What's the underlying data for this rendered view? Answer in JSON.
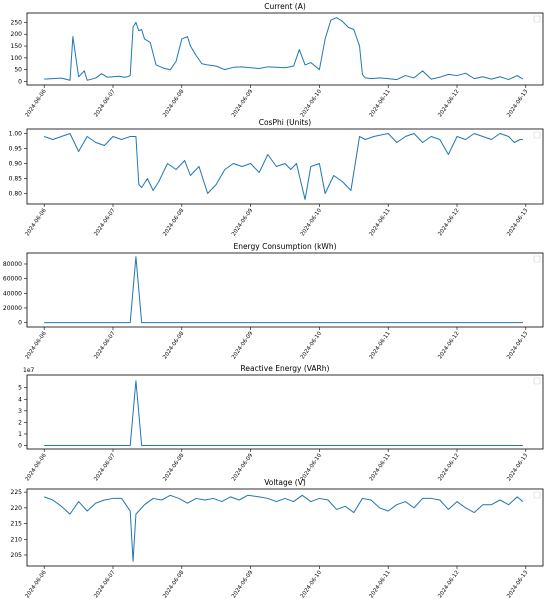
{
  "figure": {
    "charts": [
      {
        "title": "Current (A)",
        "yticks": [
          0,
          50,
          100,
          150,
          200,
          250
        ],
        "ylim": [
          -15,
          290
        ],
        "y_offset_label": ""
      },
      {
        "title": "CosPhi (Units)",
        "yticks": [
          0.8,
          0.85,
          0.9,
          0.95,
          1.0
        ],
        "ytick_labels": [
          "0.80",
          "0.85",
          "0.90",
          "0.95",
          "1.00"
        ],
        "ylim": [
          0.765,
          1.015
        ],
        "y_offset_label": ""
      },
      {
        "title": "Energy Consumption (kWh)",
        "yticks": [
          0,
          20000,
          40000,
          60000,
          80000
        ],
        "ylim": [
          -6000,
          95000
        ],
        "y_offset_label": ""
      },
      {
        "title": "Reactive Energy (VARh)",
        "yticks": [
          0,
          1,
          2,
          3,
          4,
          5
        ],
        "ylim": [
          -0.3,
          6.1
        ],
        "y_offset_label": "1e7"
      },
      {
        "title": "Voltage (V)",
        "yticks": [
          205,
          210,
          215,
          220,
          225
        ],
        "ylim": [
          201.5,
          226
        ],
        "y_offset_label": ""
      }
    ]
  },
  "chart_data": [
    {
      "type": "line",
      "title": "Current (A)",
      "xlabel": "",
      "ylabel": "",
      "xlim": [
        "2024-06-05 18:00",
        "2024-06-13 06:00"
      ],
      "ylim": [
        -15,
        290
      ],
      "x_ticks": [
        "2024-06-06",
        "2024-06-07",
        "2024-06-08",
        "2024-06-09",
        "2024-06-10",
        "2024-06-11",
        "2024-06-12",
        "2024-06-13"
      ],
      "color": "#1f77b4",
      "series": [
        {
          "x": [
            "2024-06-06 00:00",
            "2024-06-06 03:00",
            "2024-06-06 06:00",
            "2024-06-06 09:00",
            "2024-06-06 10:00",
            "2024-06-06 12:00",
            "2024-06-06 14:00",
            "2024-06-06 15:00",
            "2024-06-06 16:00",
            "2024-06-06 18:00",
            "2024-06-06 20:00",
            "2024-06-06 22:00",
            "2024-06-07 00:00",
            "2024-06-07 02:00",
            "2024-06-07 04:00",
            "2024-06-07 05:00",
            "2024-06-07 06:00",
            "2024-06-07 07:00",
            "2024-06-07 08:00",
            "2024-06-07 09:00",
            "2024-06-07 10:00",
            "2024-06-07 11:00",
            "2024-06-07 13:00",
            "2024-06-07 15:00",
            "2024-06-07 17:00",
            "2024-06-07 18:00",
            "2024-06-07 20:00",
            "2024-06-07 22:00",
            "2024-06-08 00:00",
            "2024-06-08 02:00",
            "2024-06-08 03:00",
            "2024-06-08 05:00",
            "2024-06-08 07:00",
            "2024-06-08 09:00",
            "2024-06-08 12:00",
            "2024-06-08 15:00",
            "2024-06-08 18:00",
            "2024-06-08 21:00",
            "2024-06-09 00:00",
            "2024-06-09 03:00",
            "2024-06-09 06:00",
            "2024-06-09 09:00",
            "2024-06-09 12:00",
            "2024-06-09 15:00",
            "2024-06-09 17:00",
            "2024-06-09 19:00",
            "2024-06-09 21:00",
            "2024-06-10 00:00",
            "2024-06-10 02:00",
            "2024-06-10 04:00",
            "2024-06-10 06:00",
            "2024-06-10 08:00",
            "2024-06-10 10:00",
            "2024-06-10 12:00",
            "2024-06-10 14:00",
            "2024-06-10 15:00",
            "2024-06-10 16:00",
            "2024-06-10 18:00",
            "2024-06-10 21:00",
            "2024-06-11 00:00",
            "2024-06-11 03:00",
            "2024-06-11 06:00",
            "2024-06-11 09:00",
            "2024-06-11 12:00",
            "2024-06-11 15:00",
            "2024-06-11 18:00",
            "2024-06-11 21:00",
            "2024-06-12 00:00",
            "2024-06-12 03:00",
            "2024-06-12 06:00",
            "2024-06-12 09:00",
            "2024-06-12 12:00",
            "2024-06-12 15:00",
            "2024-06-12 18:00",
            "2024-06-12 21:00",
            "2024-06-12 23:00"
          ],
          "y": [
            10,
            12,
            14,
            5,
            190,
            20,
            45,
            5,
            8,
            15,
            33,
            18,
            20,
            22,
            18,
            20,
            25,
            230,
            250,
            215,
            220,
            180,
            165,
            70,
            60,
            55,
            50,
            85,
            180,
            190,
            150,
            110,
            75,
            70,
            65,
            50,
            60,
            62,
            58,
            55,
            62,
            60,
            58,
            65,
            135,
            70,
            80,
            50,
            180,
            260,
            270,
            255,
            230,
            220,
            150,
            30,
            15,
            12,
            15,
            12,
            8,
            25,
            15,
            45,
            10,
            18,
            30,
            25,
            35,
            12,
            20,
            10,
            20,
            8,
            25,
            10
          ]
        }
      ]
    },
    {
      "type": "line",
      "title": "CosPhi (Units)",
      "xlabel": "",
      "ylabel": "",
      "xlim": [
        "2024-06-05 18:00",
        "2024-06-13 06:00"
      ],
      "ylim": [
        0.765,
        1.015
      ],
      "x_ticks": [
        "2024-06-06",
        "2024-06-07",
        "2024-06-08",
        "2024-06-09",
        "2024-06-10",
        "2024-06-11",
        "2024-06-12",
        "2024-06-13"
      ],
      "color": "#1f77b4",
      "series": [
        {
          "x": [
            "2024-06-06 00:00",
            "2024-06-06 03:00",
            "2024-06-06 06:00",
            "2024-06-06 09:00",
            "2024-06-06 12:00",
            "2024-06-06 15:00",
            "2024-06-06 18:00",
            "2024-06-06 21:00",
            "2024-06-07 00:00",
            "2024-06-07 03:00",
            "2024-06-07 06:00",
            "2024-06-07 08:00",
            "2024-06-07 09:00",
            "2024-06-07 10:00",
            "2024-06-07 12:00",
            "2024-06-07 14:00",
            "2024-06-07 16:00",
            "2024-06-07 19:00",
            "2024-06-07 22:00",
            "2024-06-08 01:00",
            "2024-06-08 03:00",
            "2024-06-08 06:00",
            "2024-06-08 09:00",
            "2024-06-08 12:00",
            "2024-06-08 15:00",
            "2024-06-08 18:00",
            "2024-06-08 21:00",
            "2024-06-09 00:00",
            "2024-06-09 03:00",
            "2024-06-09 06:00",
            "2024-06-09 09:00",
            "2024-06-09 12:00",
            "2024-06-09 14:00",
            "2024-06-09 16:00",
            "2024-06-09 19:00",
            "2024-06-09 21:00",
            "2024-06-10 00:00",
            "2024-06-10 02:00",
            "2024-06-10 05:00",
            "2024-06-10 08:00",
            "2024-06-10 11:00",
            "2024-06-10 14:00",
            "2024-06-10 16:00",
            "2024-06-10 19:00",
            "2024-06-11 00:00",
            "2024-06-11 03:00",
            "2024-06-11 06:00",
            "2024-06-11 09:00",
            "2024-06-11 12:00",
            "2024-06-11 15:00",
            "2024-06-11 18:00",
            "2024-06-11 21:00",
            "2024-06-12 00:00",
            "2024-06-12 03:00",
            "2024-06-12 06:00",
            "2024-06-12 09:00",
            "2024-06-12 12:00",
            "2024-06-12 15:00",
            "2024-06-12 18:00",
            "2024-06-12 20:00",
            "2024-06-12 22:00",
            "2024-06-12 23:00"
          ],
          "y": [
            0.99,
            0.98,
            0.99,
            1.0,
            0.94,
            0.99,
            0.97,
            0.96,
            0.99,
            0.98,
            0.99,
            0.99,
            0.83,
            0.82,
            0.85,
            0.81,
            0.84,
            0.9,
            0.88,
            0.91,
            0.86,
            0.89,
            0.8,
            0.83,
            0.88,
            0.9,
            0.89,
            0.9,
            0.87,
            0.93,
            0.89,
            0.9,
            0.88,
            0.9,
            0.78,
            0.89,
            0.9,
            0.8,
            0.86,
            0.84,
            0.81,
            0.99,
            0.98,
            0.99,
            1.0,
            0.97,
            0.99,
            1.0,
            0.97,
            0.99,
            0.98,
            0.93,
            0.99,
            0.98,
            1.0,
            0.99,
            0.98,
            1.0,
            0.99,
            0.97,
            0.98,
            0.98
          ]
        }
      ]
    },
    {
      "type": "line",
      "title": "Energy Consumption (kWh)",
      "xlabel": "",
      "ylabel": "",
      "xlim": [
        "2024-06-05 18:00",
        "2024-06-13 06:00"
      ],
      "ylim": [
        -6000,
        95000
      ],
      "x_ticks": [
        "2024-06-06",
        "2024-06-07",
        "2024-06-08",
        "2024-06-09",
        "2024-06-10",
        "2024-06-11",
        "2024-06-12",
        "2024-06-13"
      ],
      "color": "#1f77b4",
      "series": [
        {
          "x": [
            "2024-06-06 00:00",
            "2024-06-07 06:00",
            "2024-06-07 08:00",
            "2024-06-07 10:00",
            "2024-06-12 23:00"
          ],
          "y": [
            0,
            0,
            90000,
            0,
            0
          ]
        }
      ]
    },
    {
      "type": "line",
      "title": "Reactive Energy (VARh)",
      "xlabel": "",
      "ylabel": "",
      "y_offset_label": "1e7",
      "xlim": [
        "2024-06-05 18:00",
        "2024-06-13 06:00"
      ],
      "ylim": [
        -0.3,
        6.1
      ],
      "x_ticks": [
        "2024-06-06",
        "2024-06-07",
        "2024-06-08",
        "2024-06-09",
        "2024-06-10",
        "2024-06-11",
        "2024-06-12",
        "2024-06-13"
      ],
      "color": "#1f77b4",
      "series": [
        {
          "x": [
            "2024-06-06 00:00",
            "2024-06-07 06:00",
            "2024-06-07 08:00",
            "2024-06-07 10:00",
            "2024-06-12 23:00"
          ],
          "y": [
            0,
            0,
            5.6,
            0,
            0
          ]
        }
      ]
    },
    {
      "type": "line",
      "title": "Voltage (V)",
      "xlabel": "",
      "ylabel": "",
      "xlim": [
        "2024-06-05 18:00",
        "2024-06-13 06:00"
      ],
      "ylim": [
        201.5,
        226
      ],
      "x_ticks": [
        "2024-06-06",
        "2024-06-07",
        "2024-06-08",
        "2024-06-09",
        "2024-06-10",
        "2024-06-11",
        "2024-06-12",
        "2024-06-13"
      ],
      "color": "#1f77b4",
      "series": [
        {
          "x": [
            "2024-06-06 00:00",
            "2024-06-06 03:00",
            "2024-06-06 06:00",
            "2024-06-06 09:00",
            "2024-06-06 12:00",
            "2024-06-06 15:00",
            "2024-06-06 18:00",
            "2024-06-06 21:00",
            "2024-06-07 00:00",
            "2024-06-07 03:00",
            "2024-06-07 06:00",
            "2024-06-07 07:00",
            "2024-06-07 08:00",
            "2024-06-07 09:00",
            "2024-06-07 11:00",
            "2024-06-07 14:00",
            "2024-06-07 17:00",
            "2024-06-07 20:00",
            "2024-06-07 23:00",
            "2024-06-08 02:00",
            "2024-06-08 05:00",
            "2024-06-08 08:00",
            "2024-06-08 11:00",
            "2024-06-08 14:00",
            "2024-06-08 17:00",
            "2024-06-08 20:00",
            "2024-06-08 23:00",
            "2024-06-09 03:00",
            "2024-06-09 06:00",
            "2024-06-09 09:00",
            "2024-06-09 12:00",
            "2024-06-09 15:00",
            "2024-06-09 18:00",
            "2024-06-09 21:00",
            "2024-06-10 00:00",
            "2024-06-10 03:00",
            "2024-06-10 06:00",
            "2024-06-10 09:00",
            "2024-06-10 12:00",
            "2024-06-10 15:00",
            "2024-06-10 18:00",
            "2024-06-10 21:00",
            "2024-06-11 00:00",
            "2024-06-11 03:00",
            "2024-06-11 06:00",
            "2024-06-11 09:00",
            "2024-06-11 12:00",
            "2024-06-11 15:00",
            "2024-06-11 18:00",
            "2024-06-11 21:00",
            "2024-06-12 00:00",
            "2024-06-12 03:00",
            "2024-06-12 06:00",
            "2024-06-12 09:00",
            "2024-06-12 12:00",
            "2024-06-12 15:00",
            "2024-06-12 18:00",
            "2024-06-12 21:00",
            "2024-06-12 23:00"
          ],
          "y": [
            223.5,
            222.5,
            220.5,
            218,
            222,
            219,
            221.5,
            222.5,
            223,
            223,
            219,
            203,
            218,
            219,
            221,
            223,
            222.5,
            224,
            223,
            221.5,
            223,
            222.5,
            223,
            222,
            223.5,
            222.5,
            224,
            223.5,
            223,
            222,
            223,
            222,
            224,
            222,
            223,
            222.5,
            219.5,
            220.5,
            218.5,
            223,
            222.5,
            220,
            219,
            221,
            222,
            220,
            223,
            223,
            222.5,
            219.5,
            222,
            220,
            218.5,
            221,
            221,
            222.5,
            221,
            223.5,
            222
          ]
        }
      ]
    }
  ]
}
